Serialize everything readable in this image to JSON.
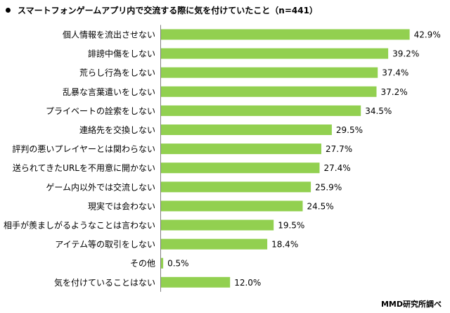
{
  "chart_data": {
    "type": "bar",
    "orientation": "horizontal",
    "title": "スマートフォンゲームアプリ内で交流する際に気を付けていたこと（n=441）",
    "source": "MMD研究所調べ",
    "categories": [
      "個人情報を流出させない",
      "誹謗中傷をしない",
      "荒らし行為をしない",
      "乱暴な言葉遣いをしない",
      "プライベートの詮索をしない",
      "連絡先を交換しない",
      "評判の悪いプレイヤーとは関わらない",
      "送られてきたURLを不用意に開かない",
      "ゲーム内以外では交流しない",
      "現実では会わない",
      "相手が羨ましがるようなことは言わない",
      "アイテム等の取引をしない",
      "その他",
      "気を付けていることはない"
    ],
    "values": [
      42.9,
      39.2,
      37.4,
      37.2,
      34.5,
      29.5,
      27.7,
      27.4,
      25.9,
      24.5,
      19.5,
      18.4,
      0.5,
      12.0
    ],
    "value_labels": [
      "42.9%",
      "39.2%",
      "37.4%",
      "37.2%",
      "34.5%",
      "29.5%",
      "27.7%",
      "27.4%",
      "25.9%",
      "24.5%",
      "19.5%",
      "18.4%",
      "0.5%",
      "12.0%"
    ],
    "unit": "%",
    "xlim": [
      0,
      45
    ],
    "grid": false,
    "legend": "none",
    "bar_color": "#92d050",
    "axis_color": "#7f7f7f"
  }
}
